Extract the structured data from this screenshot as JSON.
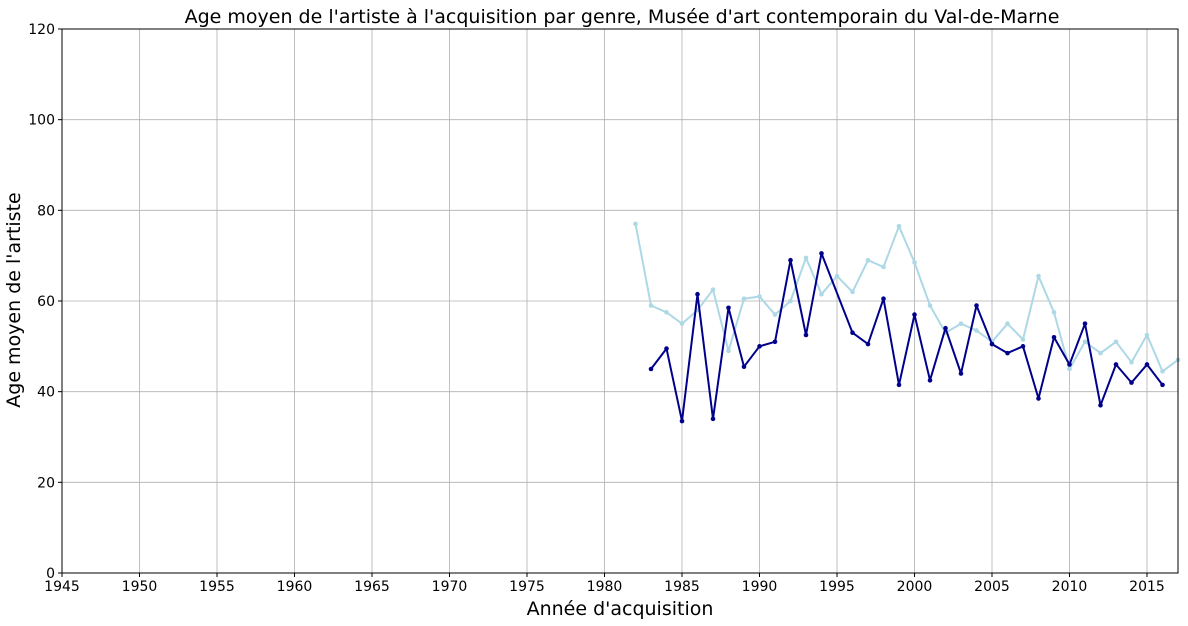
{
  "chart_data": {
    "type": "line",
    "title": "Age moyen de l'artiste à l'acquisition par genre, Musée d'art contemporain du Val-de-Marne",
    "xlabel": "Année d'acquisition",
    "ylabel": "Age moyen de l'artiste",
    "xlim": [
      1945,
      2017
    ],
    "ylim": [
      0,
      120
    ],
    "xticks": [
      1945,
      1950,
      1955,
      1960,
      1965,
      1970,
      1975,
      1980,
      1985,
      1990,
      1995,
      2000,
      2005,
      2010,
      2015
    ],
    "yticks": [
      0,
      20,
      40,
      60,
      80,
      100,
      120
    ],
    "grid": true,
    "series": [
      {
        "color": "#add8e6",
        "markers": true,
        "x": [
          1982,
          1983,
          1984,
          1985,
          1986,
          1987,
          1988,
          1989,
          1990,
          1991,
          1992,
          1993,
          1994,
          1995,
          1996,
          1997,
          1998,
          1999,
          2000,
          2001,
          2002,
          2003,
          2004,
          2005,
          2006,
          2007,
          2008,
          2009,
          2010,
          2011,
          2012,
          2013,
          2014,
          2015,
          2016,
          2017
        ],
        "values": [
          77,
          59,
          57.5,
          55,
          58,
          62.5,
          49,
          60.5,
          61,
          57,
          60,
          69.5,
          61.5,
          65.5,
          62,
          69,
          67.5,
          76.5,
          68.5,
          59,
          53,
          55,
          53.5,
          51,
          55,
          51.5,
          65.5,
          57.5,
          45,
          51,
          48.5,
          51,
          46.5,
          52.5,
          44.5,
          47
        ]
      },
      {
        "color": "#00008b",
        "markers": true,
        "x": [
          1983,
          1984,
          1985,
          1986,
          1987,
          1988,
          1989,
          1990,
          1991,
          1992,
          1993,
          1994,
          1996,
          1997,
          1998,
          1999,
          2000,
          2001,
          2002,
          2003,
          2004,
          2005,
          2006,
          2007,
          2008,
          2009,
          2010,
          2011,
          2012,
          2013,
          2014,
          2015,
          2016
        ],
        "values": [
          45,
          49.5,
          33.5,
          61.5,
          34,
          58.5,
          45.5,
          50,
          51,
          69,
          52.5,
          70.5,
          53,
          50.5,
          60.5,
          41.5,
          57,
          42.5,
          54,
          44,
          59,
          50.5,
          48.5,
          50,
          38.5,
          52,
          46,
          55,
          37,
          46,
          42,
          46,
          41.5
        ]
      }
    ]
  }
}
